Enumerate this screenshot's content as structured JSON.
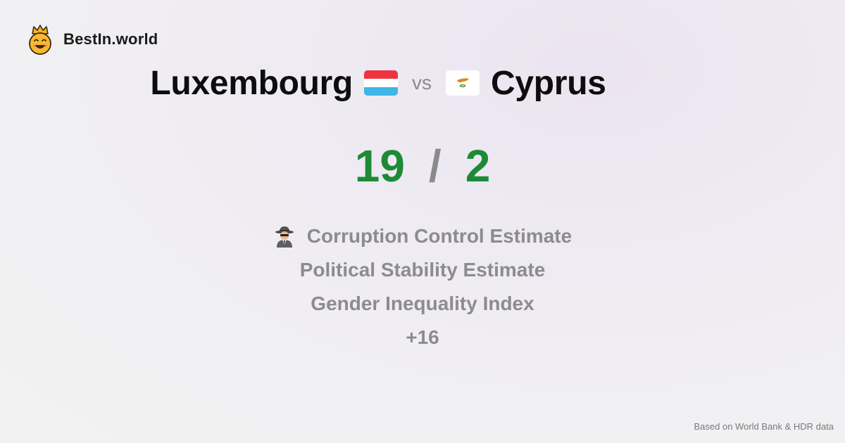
{
  "brand": {
    "name": "BestIn.world",
    "logo_icon": "crown-smiley-icon"
  },
  "comparison": {
    "left_country": "Luxembourg",
    "left_flag_icon": "luxembourg-flag-icon",
    "vs_label": "vs",
    "right_country": "Cyprus",
    "right_flag_icon": "cyprus-flag-icon"
  },
  "score": {
    "left": "19",
    "separator": "/",
    "right": "2",
    "color": "#1e8a36"
  },
  "metrics": [
    {
      "label": "Corruption Control Estimate",
      "icon": "spy-detective-icon"
    },
    {
      "label": "Political Stability Estimate"
    },
    {
      "label": "Gender Inequality Index"
    },
    {
      "label": "+16"
    }
  ],
  "footer": {
    "source": "Based on World Bank & HDR data"
  }
}
